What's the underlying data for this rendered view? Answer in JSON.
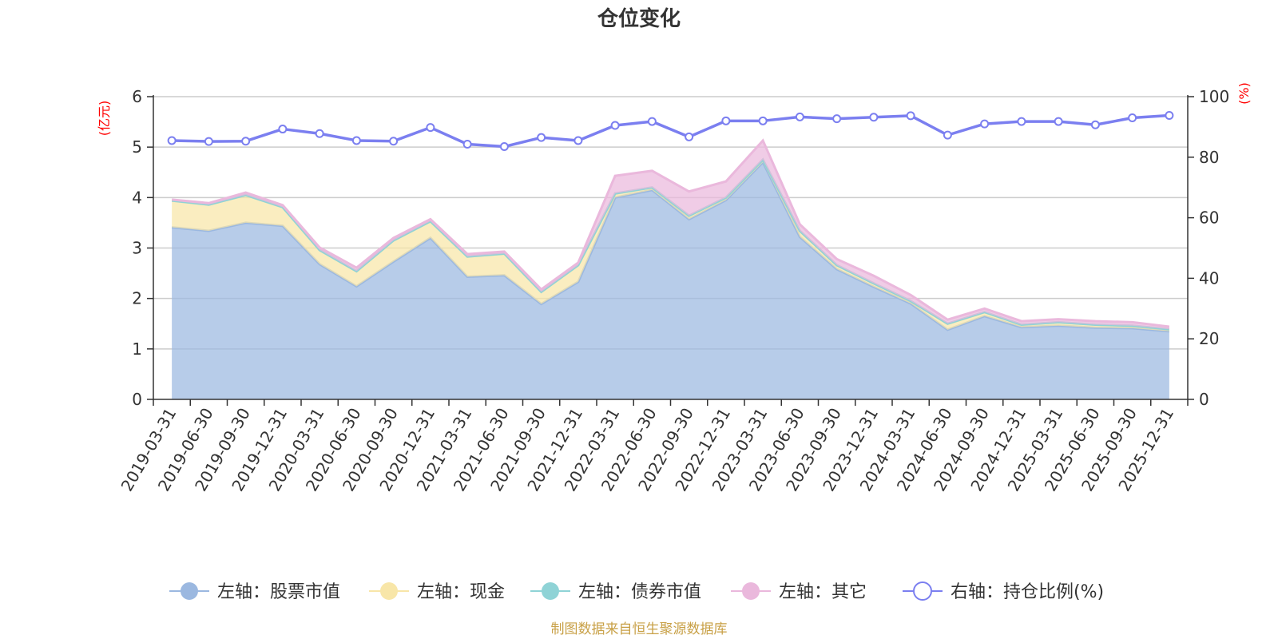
{
  "chart_data": {
    "type": "area",
    "title": "仓位变化",
    "left_unit": "(亿元)",
    "right_unit": "(%)",
    "source": "制图数据来自恒生聚源数据库",
    "y_left": {
      "min": 0,
      "max": 6,
      "ticks": [
        "0",
        "1",
        "2",
        "3",
        "4",
        "5",
        "6"
      ]
    },
    "y_right": {
      "min": 0,
      "max": 100,
      "ticks": [
        "0",
        "20",
        "40",
        "60",
        "80",
        "100"
      ]
    },
    "grid": true,
    "legend_position": "bottom",
    "categories": [
      "2019-03-31",
      "2019-06-30",
      "2019-09-30",
      "2019-12-31",
      "2020-03-31",
      "2020-06-30",
      "2020-09-30",
      "2020-12-31",
      "2021-03-31",
      "2021-06-30",
      "2021-09-30",
      "2021-12-31",
      "2022-03-31",
      "2022-06-30",
      "2022-09-30",
      "2022-12-31",
      "2023-03-31",
      "2023-06-30",
      "2023-09-30",
      "2023-12-31",
      "2024-03-31",
      "2024-06-30",
      "2024-09-30",
      "2024-12-31",
      "2025-03-31",
      "2025-06-30",
      "2025-09-30",
      "2025-12-31"
    ],
    "series": [
      {
        "name": "左轴：股票市值",
        "axis": "left",
        "kind": "stack-area",
        "color": "#9bb8e0",
        "values": [
          3.41,
          3.34,
          3.5,
          3.44,
          2.68,
          2.24,
          2.73,
          3.2,
          2.43,
          2.46,
          1.89,
          2.33,
          4.0,
          4.15,
          3.57,
          3.95,
          4.7,
          3.22,
          2.58,
          2.23,
          1.9,
          1.38,
          1.65,
          1.43,
          1.46,
          1.42,
          1.41,
          1.35
        ]
      },
      {
        "name": "左轴：现金",
        "axis": "left",
        "kind": "stack-area",
        "color": "#f8e6a8",
        "values": [
          0.53,
          0.52,
          0.55,
          0.37,
          0.28,
          0.3,
          0.42,
          0.33,
          0.4,
          0.43,
          0.24,
          0.33,
          0.08,
          0.05,
          0.07,
          0.05,
          0.05,
          0.12,
          0.08,
          0.07,
          0.05,
          0.12,
          0.08,
          0.05,
          0.07,
          0.06,
          0.05,
          0.04
        ]
      },
      {
        "name": "左轴：债券市值",
        "axis": "left",
        "kind": "stack-area",
        "color": "#8fd3d6",
        "values": [
          0,
          0,
          0,
          0,
          0,
          0,
          0,
          0,
          0,
          0,
          0,
          0,
          0,
          0,
          0,
          0,
          0,
          0,
          0,
          0,
          0,
          0,
          0,
          0,
          0,
          0,
          0,
          0
        ]
      },
      {
        "name": "左轴：其它",
        "axis": "left",
        "kind": "stack-area",
        "color": "#eab8dc",
        "values": [
          0.02,
          0.03,
          0.05,
          0.04,
          0.05,
          0.07,
          0.05,
          0.04,
          0.05,
          0.04,
          0.05,
          0.05,
          0.35,
          0.33,
          0.48,
          0.32,
          0.38,
          0.13,
          0.12,
          0.15,
          0.12,
          0.08,
          0.07,
          0.07,
          0.06,
          0.07,
          0.07,
          0.05
        ]
      },
      {
        "name": "右轴：持仓比例(%)",
        "axis": "right",
        "kind": "line",
        "color": "#7b7ff0",
        "values": [
          85.5,
          85.2,
          85.3,
          89.3,
          87.8,
          85.5,
          85.3,
          89.8,
          84.3,
          83.5,
          86.5,
          85.5,
          90.5,
          91.8,
          86.7,
          92.0,
          92.0,
          93.3,
          92.7,
          93.2,
          93.7,
          87.3,
          91.0,
          91.8,
          91.8,
          90.7,
          93.0,
          93.8
        ]
      }
    ]
  }
}
